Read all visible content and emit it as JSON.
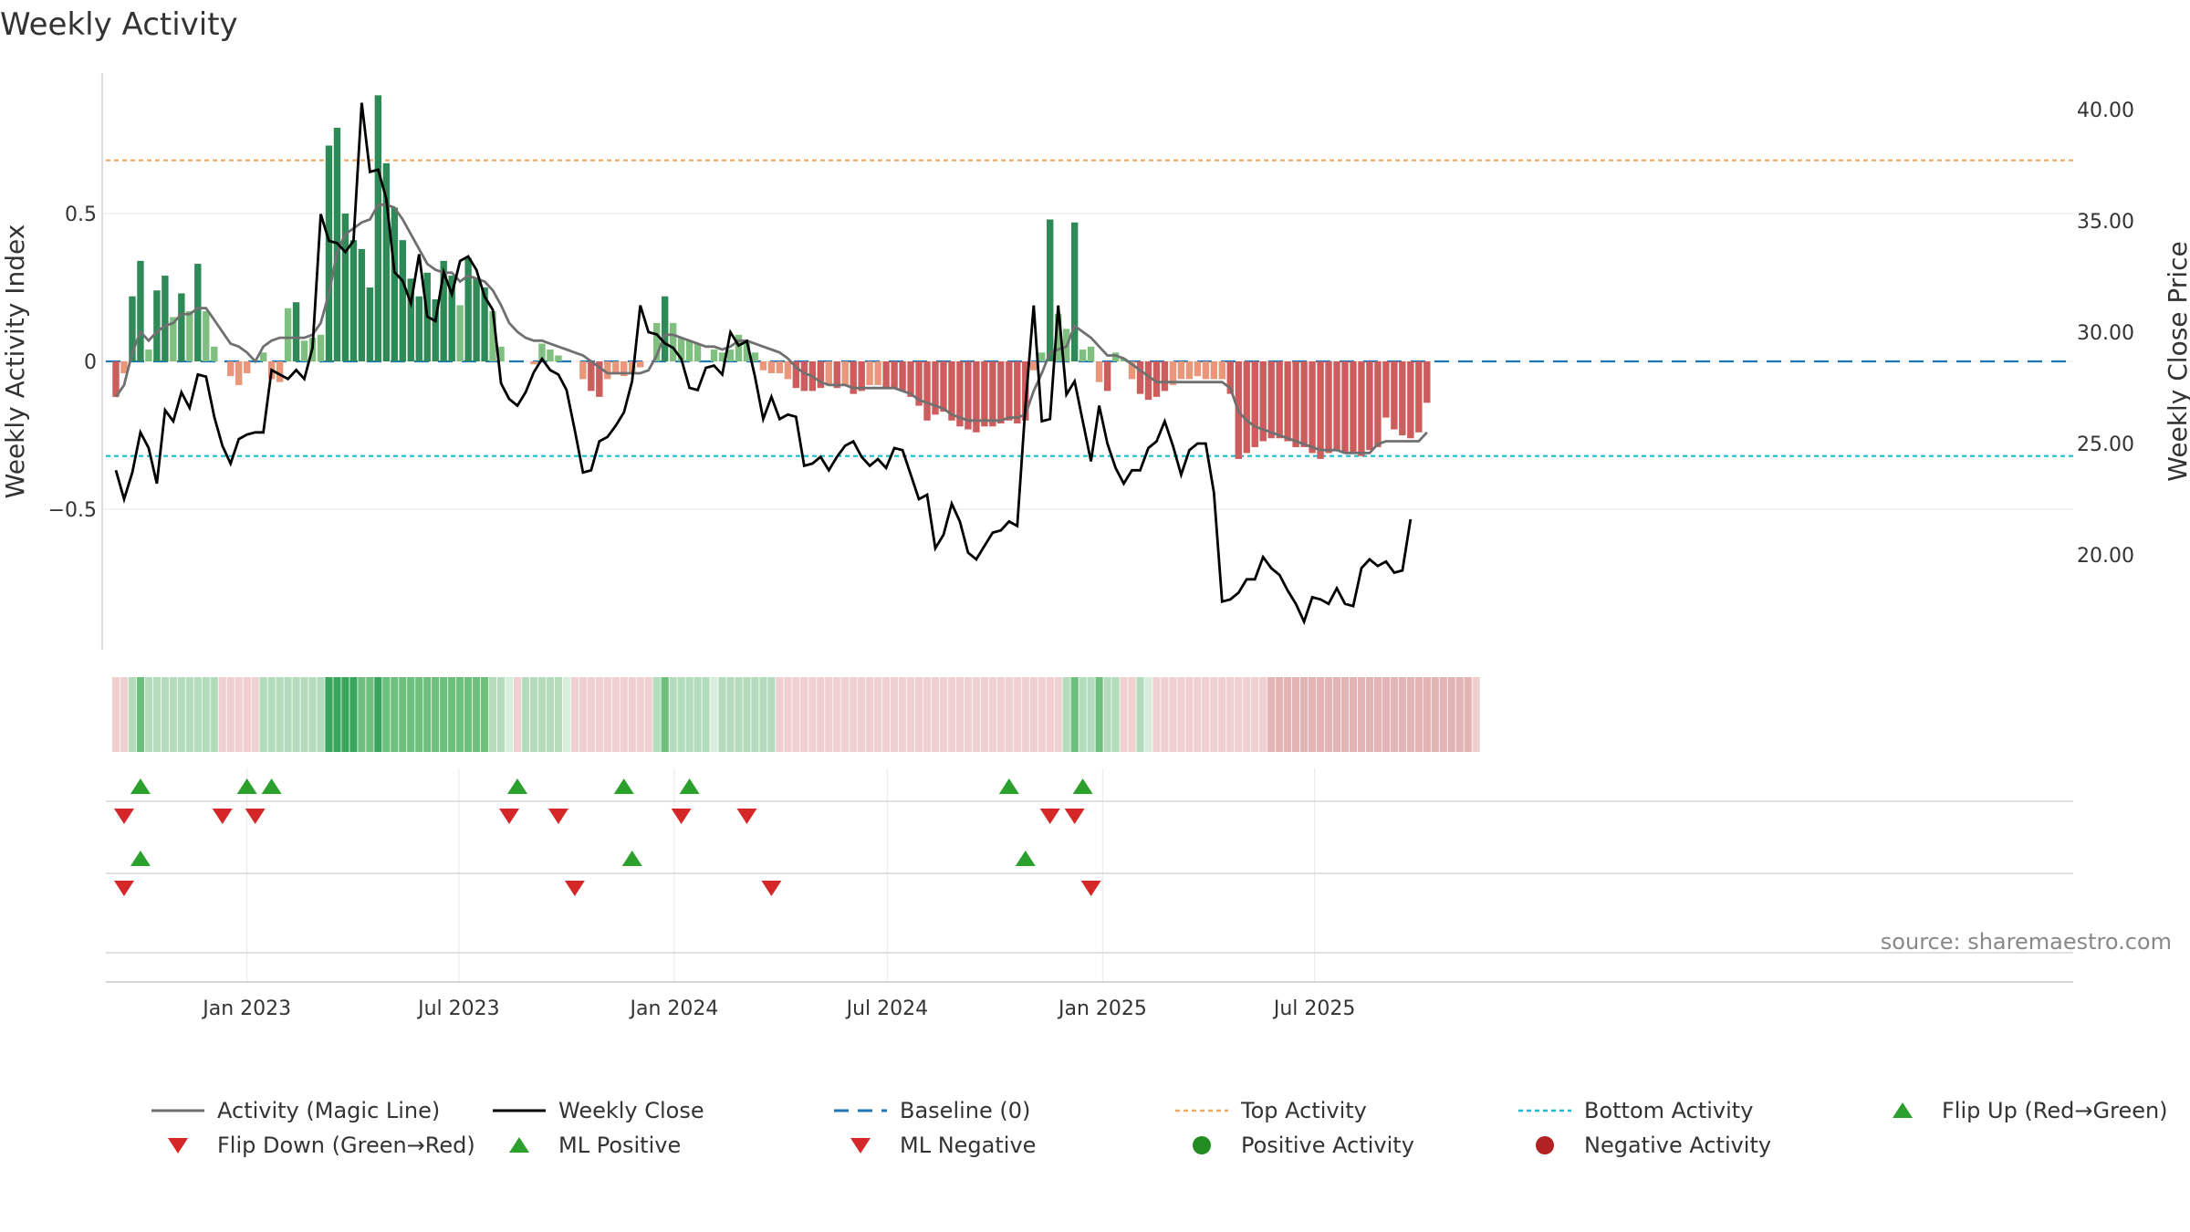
{
  "title": "Weekly Activity",
  "source": "source: sharemaestro.com",
  "colors": {
    "pos_strong": "#2e8b57",
    "pos_weak": "#7fc080",
    "neg_strong": "#cd5c5c",
    "neg_weak": "#e9967a",
    "magic_line": "#707070",
    "close_line": "#000000",
    "baseline": "#1f77b4",
    "top": "#f0a860",
    "bottom": "#17becf",
    "flip_up": "#2ca02c",
    "flip_down": "#d62728",
    "pos_dot": "#228b22",
    "neg_dot": "#b22222"
  },
  "chart_data": {
    "type": "bar",
    "title": "Weekly Activity",
    "ylabel_left": "Weekly Activity Index",
    "ylabel_right": "Weekly Close Price",
    "x_start": "2022-09-11",
    "x_ticks": [
      "Jan 2023",
      "Jul 2023",
      "Jan 2024",
      "Jul 2024",
      "Jan 2025",
      "Jul 2025"
    ],
    "ylim_left": [
      -0.97,
      1.0
    ],
    "yticks_left": [
      "0.5",
      "0",
      "−0.5"
    ],
    "ylim_right": [
      15.5,
      42.0
    ],
    "yticks_right": [
      "20.00",
      "25.00",
      "30.00",
      "35.00",
      "40.00"
    ],
    "top_activity": 0.68,
    "bottom_activity": -0.32,
    "baseline": 0,
    "activity": [
      -0.12,
      -0.04,
      0.22,
      0.34,
      0.04,
      0.24,
      0.29,
      0.15,
      0.23,
      0.17,
      0.33,
      0.17,
      0.05,
      0,
      -0.05,
      -0.08,
      -0.04,
      0,
      0.03,
      -0.06,
      -0.07,
      0.18,
      0.2,
      0.07,
      0.08,
      0.09,
      0.73,
      0.79,
      0.5,
      0.41,
      0.38,
      0.25,
      0.9,
      0.67,
      0.52,
      0.41,
      0.28,
      0.22,
      0.3,
      0.21,
      0.34,
      0.29,
      0.19,
      0.35,
      0.28,
      0.25,
      0.17,
      0.05,
      0,
      0,
      0,
      -0.01,
      0.06,
      0.04,
      0.02,
      0,
      0,
      -0.06,
      -0.1,
      -0.12,
      -0.06,
      -0.04,
      -0.05,
      -0.04,
      -0.02,
      0,
      0.13,
      0.22,
      0.13,
      0.08,
      0.07,
      0.06,
      0,
      0.04,
      0.03,
      0.04,
      0.09,
      0.07,
      0.03,
      -0.03,
      -0.04,
      -0.04,
      -0.06,
      -0.09,
      -0.1,
      -0.1,
      -0.09,
      -0.08,
      -0.09,
      -0.08,
      -0.11,
      -0.1,
      -0.08,
      -0.08,
      -0.09,
      -0.09,
      -0.1,
      -0.12,
      -0.15,
      -0.2,
      -0.18,
      -0.17,
      -0.2,
      -0.22,
      -0.23,
      -0.24,
      -0.22,
      -0.22,
      -0.21,
      -0.2,
      -0.21,
      -0.2,
      -0.03,
      0.03,
      0.48,
      0.16,
      0.11,
      0.47,
      0.04,
      0.05,
      -0.07,
      -0.1,
      0.03,
      0.01,
      -0.06,
      -0.11,
      -0.13,
      -0.12,
      -0.1,
      -0.08,
      -0.06,
      -0.06,
      -0.05,
      -0.06,
      -0.06,
      -0.06,
      -0.11,
      -0.33,
      -0.31,
      -0.29,
      -0.27,
      -0.26,
      -0.26,
      -0.27,
      -0.29,
      -0.29,
      -0.31,
      -0.33,
      -0.31,
      -0.3,
      -0.31,
      -0.31,
      -0.32,
      -0.3,
      -0.29,
      -0.19,
      -0.23,
      -0.25,
      -0.26,
      -0.24,
      -0.14
    ],
    "magic_line": [
      -0.12,
      -0.08,
      0.03,
      0.1,
      0.07,
      0.1,
      0.12,
      0.13,
      0.16,
      0.16,
      0.18,
      0.18,
      0.14,
      0.1,
      0.06,
      0.05,
      0.03,
      0,
      0.05,
      0.07,
      0.08,
      0.08,
      0.08,
      0.08,
      0.09,
      0.13,
      0.23,
      0.37,
      0.43,
      0.45,
      0.47,
      0.48,
      0.53,
      0.53,
      0.52,
      0.48,
      0.43,
      0.38,
      0.33,
      0.31,
      0.3,
      0.3,
      0.27,
      0.29,
      0.28,
      0.27,
      0.24,
      0.19,
      0.13,
      0.1,
      0.08,
      0.07,
      0.07,
      0.06,
      0.05,
      0.04,
      0.03,
      0.02,
      0,
      -0.02,
      -0.04,
      -0.04,
      -0.04,
      -0.04,
      -0.04,
      -0.03,
      0.02,
      0.09,
      0.09,
      0.08,
      0.07,
      0.06,
      0.05,
      0.05,
      0.04,
      0.05,
      0.07,
      0.07,
      0.06,
      0.05,
      0.04,
      0.03,
      0.01,
      -0.02,
      -0.04,
      -0.05,
      -0.07,
      -0.08,
      -0.08,
      -0.08,
      -0.09,
      -0.09,
      -0.09,
      -0.09,
      -0.09,
      -0.09,
      -0.1,
      -0.11,
      -0.13,
      -0.14,
      -0.15,
      -0.16,
      -0.18,
      -0.19,
      -0.2,
      -0.2,
      -0.2,
      -0.2,
      -0.2,
      -0.19,
      -0.19,
      -0.18,
      -0.1,
      -0.04,
      0.03,
      0.04,
      0.05,
      0.12,
      0.1,
      0.08,
      0.05,
      0.02,
      0.02,
      0.01,
      -0.01,
      -0.03,
      -0.05,
      -0.07,
      -0.07,
      -0.07,
      -0.07,
      -0.07,
      -0.07,
      -0.07,
      -0.07,
      -0.07,
      -0.09,
      -0.17,
      -0.2,
      -0.22,
      -0.23,
      -0.24,
      -0.25,
      -0.26,
      -0.27,
      -0.28,
      -0.29,
      -0.3,
      -0.3,
      -0.3,
      -0.31,
      -0.31,
      -0.31,
      -0.31,
      -0.28,
      -0.27,
      -0.27,
      -0.27,
      -0.27,
      -0.27,
      -0.24
    ],
    "weekly_close": [
      23.8,
      22.5,
      23.7,
      25.5,
      24.8,
      23.2,
      26.5,
      26.0,
      27.3,
      26.6,
      28.1,
      28.0,
      26.2,
      24.9,
      24.1,
      25.2,
      25.4,
      25.5,
      25.5,
      28.3,
      28.1,
      27.9,
      28.3,
      27.9,
      29.3,
      35.3,
      34.1,
      34.0,
      33.6,
      34.1,
      40.3,
      37.2,
      37.3,
      36.0,
      32.7,
      32.3,
      31.3,
      33.5,
      30.7,
      30.5,
      32.7,
      31.7,
      33.2,
      33.4,
      32.8,
      31.6,
      31.0,
      27.7,
      27.0,
      26.7,
      27.3,
      28.2,
      28.8,
      28.3,
      28.1,
      27.4,
      25.6,
      23.7,
      23.8,
      25.1,
      25.3,
      25.8,
      26.4,
      27.8,
      31.2,
      30.0,
      29.9,
      29.5,
      29.3,
      28.8,
      27.5,
      27.4,
      28.4,
      28.5,
      28.1,
      30.0,
      29.4,
      29.6,
      28.0,
      26.1,
      27.1,
      26.1,
      26.3,
      26.2,
      24.0,
      24.1,
      24.4,
      23.8,
      24.4,
      24.9,
      25.1,
      24.4,
      24.0,
      24.3,
      23.9,
      24.8,
      24.7,
      23.6,
      22.5,
      22.7,
      20.3,
      20.9,
      22.3,
      21.5,
      20.1,
      19.8,
      20.4,
      21.0,
      21.1,
      21.5,
      21.3,
      26.7,
      31.2,
      26.0,
      26.1,
      31.2,
      27.2,
      27.8,
      26.0,
      24.2,
      26.7,
      25.0,
      23.9,
      23.2,
      23.8,
      23.8,
      24.8,
      25.1,
      26.0,
      24.9,
      23.6,
      24.7,
      25.0,
      25.0,
      22.8,
      17.9,
      18.0,
      18.3,
      18.9,
      18.9,
      19.9,
      19.4,
      19.1,
      18.4,
      17.8,
      17.0,
      18.1,
      18.0,
      17.8,
      18.5,
      17.8,
      17.7,
      19.4,
      19.8,
      19.5,
      19.7,
      19.2,
      19.3,
      21.6
    ],
    "signal_strip": [
      -1,
      -1,
      1,
      2,
      1,
      1,
      1,
      1,
      1,
      1,
      1,
      1,
      1,
      -1,
      -1,
      -1,
      -1,
      -1,
      1,
      1,
      1,
      1,
      1,
      1,
      1,
      1,
      3,
      3,
      3,
      3,
      2,
      2,
      3,
      2,
      2,
      2,
      2,
      2,
      2,
      2,
      2,
      2,
      2,
      2,
      2,
      2,
      1,
      1,
      0,
      -1,
      1,
      1,
      1,
      1,
      1,
      0,
      -1,
      -1,
      -1,
      -1,
      -1,
      -1,
      -1,
      -1,
      -1,
      -1,
      1,
      2,
      1,
      1,
      1,
      1,
      1,
      0,
      1,
      1,
      1,
      1,
      1,
      1,
      1,
      -1,
      -1,
      -1,
      -1,
      -1,
      -1,
      -1,
      -1,
      -1,
      -1,
      -1,
      -1,
      -1,
      -1,
      -1,
      -1,
      -1,
      -1,
      -1,
      -1,
      -1,
      -1,
      -1,
      -1,
      -1,
      -1,
      -1,
      -1,
      -1,
      -1,
      -1,
      -1,
      -1,
      -1,
      -1,
      1,
      2,
      1,
      1,
      2,
      1,
      1,
      -1,
      -1,
      1,
      0,
      -1,
      -1,
      -1,
      -1,
      -1,
      -1,
      -1,
      -1,
      -1,
      -1,
      -1,
      -1,
      -1,
      -1,
      -2,
      -2,
      -2,
      -2,
      -2,
      -2,
      -2,
      -2,
      -2,
      -2,
      -2,
      -2,
      -2,
      -2,
      -2,
      -2,
      -2,
      -2,
      -2,
      -2,
      -2,
      -2,
      -2,
      -2,
      -2,
      -1
    ],
    "flip_up_weeks": [
      3,
      16,
      19,
      49,
      62,
      70,
      109,
      118
    ],
    "flip_down_weeks": [
      1,
      13,
      17,
      48,
      54,
      69,
      77,
      114,
      117
    ],
    "ml_positive_weeks": [
      3,
      63,
      111
    ],
    "ml_negative_weeks": [
      1,
      56,
      80,
      119
    ],
    "legend": [
      "Activity (Magic Line)",
      "Weekly Close",
      "Baseline (0)",
      "Top Activity",
      "Bottom Activity",
      "Flip Up (Red→Green)",
      "Flip Down (Green→Red)",
      "ML Positive",
      "ML Negative",
      "Positive Activity",
      "Negative Activity"
    ]
  }
}
